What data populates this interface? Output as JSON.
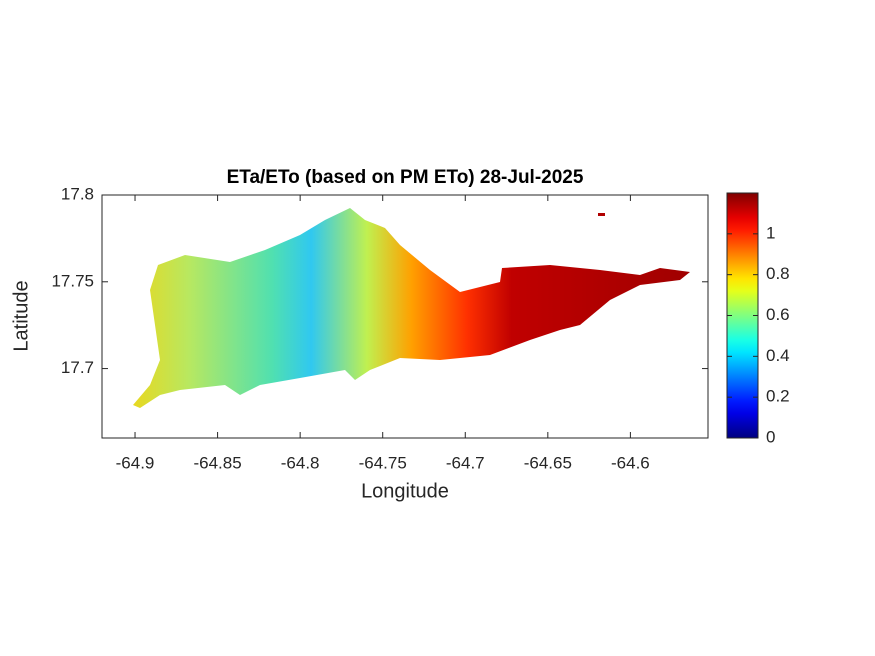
{
  "chart_data": {
    "type": "map",
    "title": "ETa/ETo (based on PM ETo) 28-Jul-2025",
    "xlabel": "Longitude",
    "ylabel": "Latitude",
    "xlim": [
      -64.92,
      -64.553
    ],
    "xticks": [
      -64.9,
      -64.85,
      -64.8,
      -64.75,
      -64.7,
      -64.65,
      -64.6
    ],
    "ylim": [
      17.66,
      17.8
    ],
    "yticks": [
      17.7,
      17.75,
      17.8
    ],
    "colormap": "jet",
    "clim": [
      0,
      1.2
    ],
    "cticks": [
      0,
      0.2,
      0.4,
      0.6,
      0.8,
      1
    ]
  }
}
